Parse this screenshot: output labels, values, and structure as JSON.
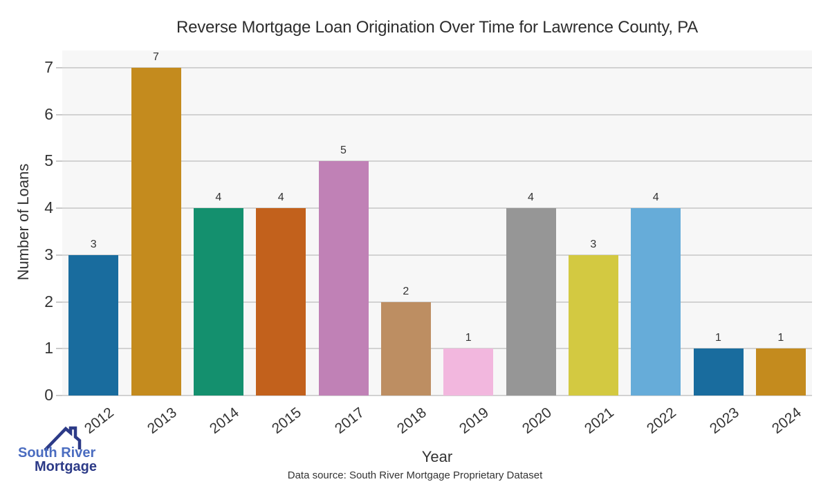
{
  "chart_data": {
    "type": "bar",
    "title": "Reverse Mortgage Loan Origination Over Time for Lawrence County, PA",
    "xlabel": "Year",
    "ylabel": "Number of Loans",
    "categories": [
      "2012",
      "2013",
      "2014",
      "2015",
      "2017",
      "2018",
      "2019",
      "2020",
      "2021",
      "2022",
      "2023",
      "2024"
    ],
    "values": [
      3,
      7,
      4,
      4,
      5,
      2,
      1,
      4,
      3,
      4,
      1,
      1
    ],
    "bar_colors": [
      "#196c9e",
      "#c48b1e",
      "#14906e",
      "#c2611c",
      "#c081b6",
      "#bd8e62",
      "#f2b7de",
      "#969696",
      "#d3c941",
      "#66acd9",
      "#196c9e",
      "#c48b1e"
    ],
    "yticks": [
      0,
      1,
      2,
      3,
      4,
      5,
      6,
      7
    ],
    "ylim": [
      0,
      7.37
    ],
    "grid": "horizontal",
    "legend": "none",
    "plot_bg_color": "#f7f7f7",
    "gridline_color": "#d2d2d2",
    "tick_color": "#c9c9c9",
    "text_color": "#333333"
  },
  "footer": {
    "source_note": "Data source: South River Mortgage Proprietary Dataset"
  },
  "logo": {
    "line1": "South River",
    "line2": "Mortgage",
    "line1_color": "#4a6cc0",
    "line2_color": "#2c3a87",
    "icon": "house-roof-icon",
    "icon_color": "#2c3a87"
  }
}
